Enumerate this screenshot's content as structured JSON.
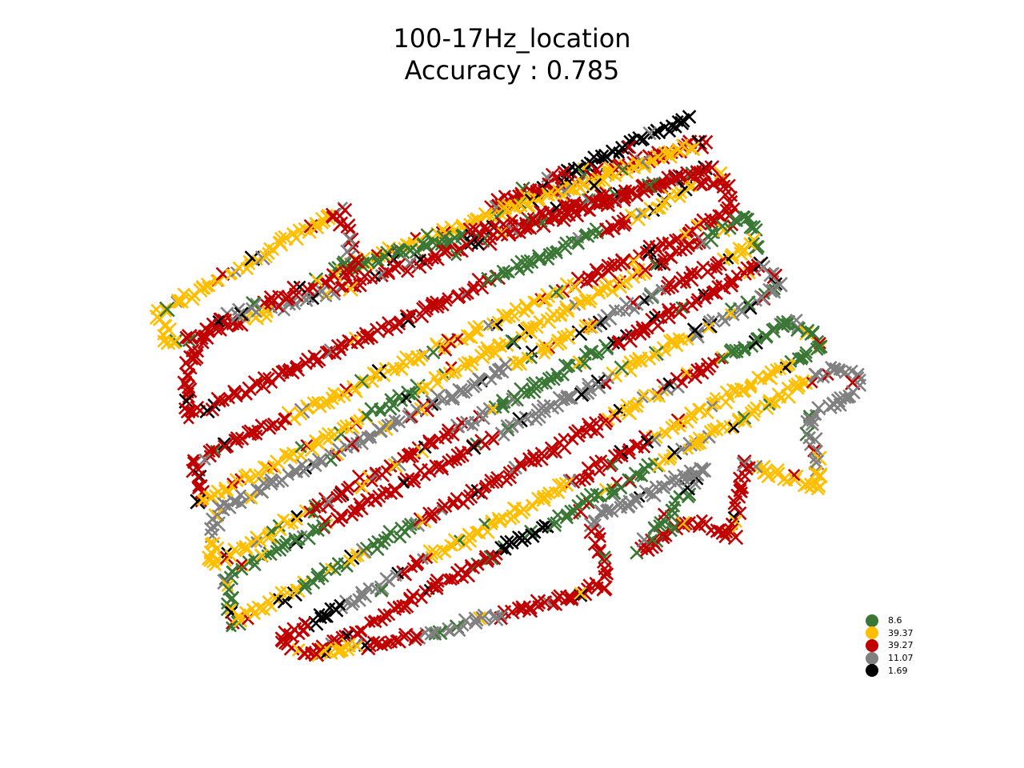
{
  "chart_data": {
    "type": "scatter",
    "title": "100-17Hz_location",
    "subtitle": "Accuracy : 0.785",
    "axes_visible": false,
    "marker": "x",
    "legend_position": "lower-right",
    "series": [
      {
        "name": "8.6",
        "color": "#3a7734"
      },
      {
        "name": "39.37",
        "color": "#ffbf00"
      },
      {
        "name": "39.27",
        "color": "#c00000"
      },
      {
        "name": "11.07",
        "color": "#808080"
      },
      {
        "name": "1.69",
        "color": "#000000"
      }
    ]
  }
}
